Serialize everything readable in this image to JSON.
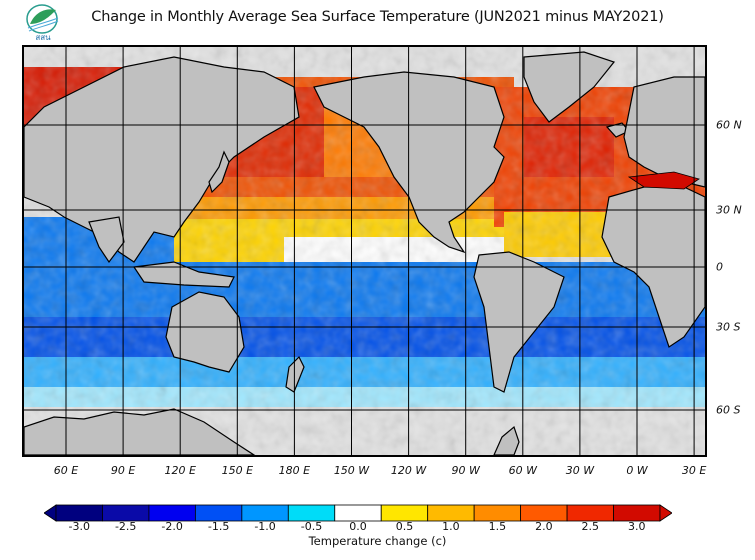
{
  "header": {
    "logo_text": "สสน",
    "title": "Change in Monthly Average Sea Surface Temperature (JUN2021 minus MAY2021)"
  },
  "map": {
    "projection": "equirectangular",
    "lon_labels": [
      "60 E",
      "90 E",
      "120 E",
      "150 E",
      "180 E",
      "150 W",
      "120 W",
      "90 W",
      "60 W",
      "30 W",
      "0 W",
      "30 E"
    ],
    "lat_labels": [
      "60 N",
      "30 N",
      "0",
      "30 S",
      "60 S"
    ],
    "land_color": "#c0c0c0",
    "no_data_color": "#e2e2e2",
    "regions": [
      {
        "name": "North Pacific",
        "change_c": 2.5
      },
      {
        "name": "Northwest Pacific / Sea of Japan",
        "change_c": 3.0
      },
      {
        "name": "Equatorial Pacific north band",
        "change_c": 0.5
      },
      {
        "name": "North Atlantic",
        "change_c": 2.0
      },
      {
        "name": "Mediterranean Sea",
        "change_c": 3.0
      },
      {
        "name": "Gulf of Mexico / Caribbean",
        "change_c": 1.0
      },
      {
        "name": "Indian Ocean",
        "change_c": -1.5
      },
      {
        "name": "South Pacific",
        "change_c": -1.5
      },
      {
        "name": "South Atlantic",
        "change_c": -2.0
      },
      {
        "name": "Southern Ocean",
        "change_c": -0.5
      }
    ]
  },
  "colorbar": {
    "label": "Temperature change  (c)",
    "ticks": [
      "-3.0",
      "-2.5",
      "-2.0",
      "-1.5",
      "-1.0",
      "-0.5",
      "0.0",
      "0.5",
      "1.0",
      "1.5",
      "2.0",
      "2.5",
      "3.0"
    ],
    "colors": [
      "#00007f",
      "#0a0aa8",
      "#0000f0",
      "#0050f5",
      "#0096ff",
      "#00dcf8",
      "#ffffff",
      "#ffe600",
      "#ffba00",
      "#ff8c00",
      "#ff5a00",
      "#f02800",
      "#d20a00"
    ],
    "extend_low_color": "#00007f",
    "extend_high_color": "#d20a00"
  }
}
